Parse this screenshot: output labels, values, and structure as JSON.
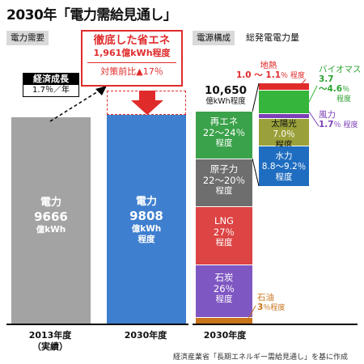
{
  "title": "2030年「電力需給見通し」",
  "left_panel": {
    "tag": "電力需要",
    "growth_label": "経済成長",
    "growth_rate": "1.7％／年",
    "callout_title": "徹底した省エネ",
    "callout_value": "1,961億kWh程度",
    "callout_note": "対策前比▲17％",
    "bar_2013": {
      "l1": "電力",
      "l2": "9666",
      "l3": "億kWh"
    },
    "bar_2030": {
      "l1": "電力",
      "l2": "9808",
      "l3": "億kWh",
      "l4": "程度"
    },
    "x_2013": "2013年度",
    "x_2013b": "（実績）",
    "x_2030": "2030年度"
  },
  "right_panel": {
    "tag": "電源構成",
    "subtitle": "総発電電力量",
    "total_value": "10,650",
    "total_unit": "億kWh程度",
    "x_label": "2030年度",
    "geothermal_label": "地熱",
    "geothermal_value": "1.0 〜 1.1",
    "geothermal_unit": "％ 程度",
    "biomass_label": "バイオマス",
    "biomass_value": "3.7",
    "biomass_value2": "〜4.6",
    "biomass_unit": "％",
    "biomass_unit2": "程度",
    "wind_label": "風力",
    "wind_value": "1.7",
    "wind_unit": "％ 程度",
    "oil_label": "石油",
    "oil_value": "3",
    "oil_unit": "％程度"
  },
  "source": "経済産業省「長期エネルギー需給見通し」を基に作成",
  "colors": {
    "gray_bar": "#a3a3a3",
    "blue_bar": "#3f7fcf",
    "renew": "#3aa24a",
    "nuclear": "#6e6e6e",
    "lng": "#dd4444",
    "coal": "#7f57c2",
    "oil": "#c8741b",
    "solar": "#9aa13a",
    "hydro": "#1f6dc0",
    "biomass": "#35b53b",
    "wind": "#7d3fb8",
    "geothermal": "#e02b2b",
    "accent_red": "#e02b2b"
  },
  "chart_data": [
    {
      "type": "bar",
      "categories": [
        "2013年度（実績）",
        "2030年度"
      ],
      "values": [
        9666,
        9808
      ],
      "unit": "億kWh",
      "ylim": [
        0,
        11769
      ]
    },
    {
      "type": "bar",
      "stacked": true,
      "total": 10650,
      "total_unit": "億kWh程度",
      "series": [
        {
          "name": "石油",
          "value_pct": 3
        },
        {
          "name": "石炭",
          "value_pct": 26
        },
        {
          "name": "LNG",
          "value_pct": 27
        },
        {
          "name": "原子力",
          "value_pct_range": [
            22,
            20
          ]
        },
        {
          "name": "再エネ",
          "value_pct_range": [
            22,
            24
          ]
        }
      ],
      "renewables_breakdown": [
        {
          "name": "水力",
          "value_pct_range": [
            8.8,
            9.2
          ]
        },
        {
          "name": "太陽光",
          "value_pct": 7.0
        },
        {
          "name": "風力",
          "value_pct": 1.7
        },
        {
          "name": "バイオマス",
          "value_pct_range": [
            3.7,
            4.6
          ]
        },
        {
          "name": "地熱",
          "value_pct_range": [
            1.0,
            1.1
          ]
        }
      ],
      "labels": {
        "renew": [
          "再エネ",
          "22〜24％",
          "程度"
        ],
        "nuclear": [
          "原子力",
          "22〜20％",
          "程度"
        ],
        "lng": [
          "LNG",
          "27％",
          "程度"
        ],
        "coal": [
          "石炭",
          "26％",
          "程度"
        ],
        "solar": [
          "太陽光",
          "7.0％",
          "程度"
        ],
        "hydro": [
          "水力",
          "8.8〜9.2％",
          "程度"
        ]
      }
    }
  ]
}
